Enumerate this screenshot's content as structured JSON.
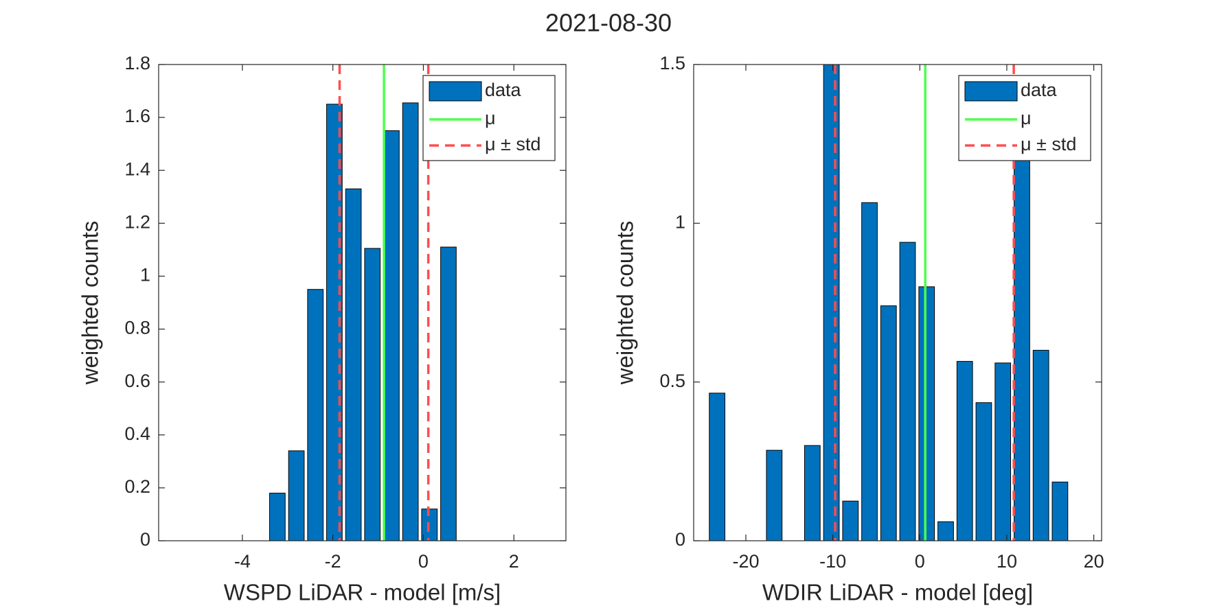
{
  "title": "2021-08-30",
  "chart_data": [
    {
      "type": "histogram",
      "xlabel": "WSPD LiDAR - model [m/s]",
      "ylabel": "weighted counts",
      "name": "data",
      "color": "#0072bd",
      "bins": [
        -3.436,
        -3.016,
        -2.596,
        -2.176,
        -1.756,
        -1.336,
        -0.916,
        -0.496,
        -0.076,
        0.344,
        0.764
      ],
      "values": [
        0.18,
        0.34,
        0.95,
        1.65,
        1.33,
        1.105,
        1.55,
        1.655,
        0.12,
        1.11
      ],
      "lines": [
        {
          "name": "μ",
          "color": "#4dff4d",
          "style": "solid",
          "x": [
            -0.871
          ]
        },
        {
          "name": "μ ± std",
          "color": "#ff4d4d",
          "style": "dashed",
          "x": [
            -1.851,
            0.109
          ]
        }
      ],
      "xlim": [
        -5.85,
        3.15
      ],
      "ylim": [
        0,
        1.8
      ],
      "xticks": [
        -4,
        -2,
        0,
        2
      ],
      "yticks": [
        0,
        0.2,
        0.4,
        0.6,
        0.8,
        1,
        1.2,
        1.4,
        1.6,
        1.8
      ],
      "legend": "northeast"
    },
    {
      "type": "histogram",
      "xlabel": "WDIR LiDAR - model [deg]",
      "ylabel": "weighted counts",
      "name": "data",
      "color": "#0072bd",
      "bins": [
        -24.4,
        -22.21,
        -20.02,
        -17.83,
        -15.64,
        -13.45,
        -11.26,
        -9.07,
        -6.88,
        -4.69,
        -2.5,
        -0.31,
        1.88,
        4.07,
        6.26,
        8.45,
        10.64,
        12.83,
        15.02,
        17.21
      ],
      "values": [
        0.465,
        0,
        0,
        0.285,
        0,
        0.3,
        1.5,
        0.125,
        1.065,
        0.74,
        0.94,
        0.8,
        0.06,
        0.565,
        0.435,
        0.56,
        1.215,
        0.6,
        0.185
      ],
      "lines": [
        {
          "name": "μ",
          "color": "#4dff4d",
          "style": "solid",
          "x": [
            0.625
          ]
        },
        {
          "name": "μ ± std",
          "color": "#ff4d4d",
          "style": "dashed",
          "x": [
            -9.73,
            10.8
          ]
        }
      ],
      "xlim": [
        -26,
        20.9
      ],
      "ylim": [
        0,
        1.5
      ],
      "xticks": [
        -20,
        -10,
        0,
        10,
        20
      ],
      "yticks": [
        0,
        0.5,
        1,
        1.5
      ],
      "legend": "northeast"
    }
  ]
}
